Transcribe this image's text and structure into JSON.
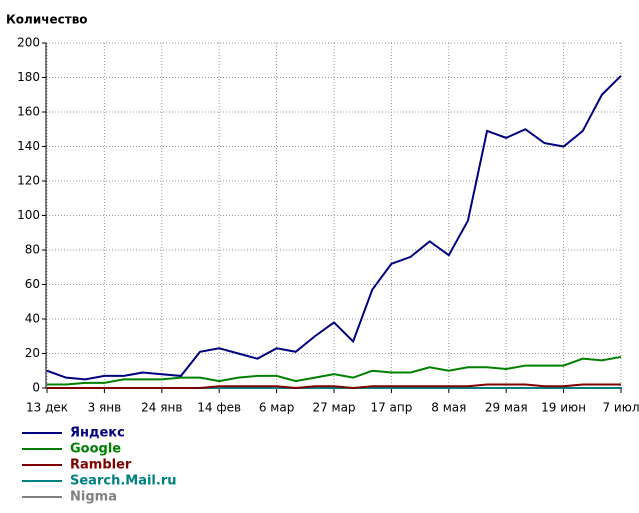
{
  "chart_data": {
    "type": "line",
    "y_label": "Количество",
    "categories": [
      "13 дек",
      null,
      null,
      "3 янв",
      null,
      null,
      "24 янв",
      null,
      null,
      "14 фев",
      null,
      null,
      "6 мар",
      null,
      null,
      "27 мар",
      null,
      null,
      "17 апр",
      null,
      null,
      "8 мая",
      null,
      null,
      "29 мая",
      null,
      null,
      "19 июн",
      null,
      null,
      "7 июл"
    ],
    "series": [
      {
        "name": "Яндекс",
        "color": "#000080",
        "values": [
          10,
          6,
          5,
          7,
          7,
          9,
          8,
          7,
          21,
          23,
          20,
          17,
          23,
          21,
          30,
          38,
          27,
          57,
          72,
          76,
          85,
          77,
          97,
          149,
          145,
          150,
          142,
          140,
          149,
          170,
          181
        ]
      },
      {
        "name": "Google",
        "color": "#008000",
        "values": [
          2,
          2,
          3,
          3,
          5,
          5,
          5,
          6,
          6,
          4,
          6,
          7,
          7,
          4,
          6,
          8,
          6,
          10,
          9,
          9,
          12,
          10,
          12,
          12,
          11,
          13,
          13,
          13,
          17,
          16,
          18
        ]
      },
      {
        "name": "Rambler",
        "color": "#800000",
        "values": [
          0,
          0,
          0,
          0,
          0,
          0,
          0,
          0,
          0,
          1,
          1,
          1,
          1,
          0,
          1,
          1,
          0,
          1,
          1,
          1,
          1,
          1,
          1,
          2,
          2,
          2,
          1,
          1,
          2,
          2,
          2
        ]
      },
      {
        "name": "Search.Mail.ru",
        "color": "#008080",
        "values": [
          0,
          0,
          0,
          0,
          0,
          0,
          0,
          0,
          0,
          0,
          0,
          0,
          0,
          0,
          0,
          0,
          0,
          0,
          0,
          0,
          0,
          0,
          0,
          0,
          0,
          0,
          0,
          0,
          0,
          0,
          0
        ]
      },
      {
        "name": "Nigma",
        "color": "#808080",
        "values": [
          0,
          0,
          0,
          0,
          0,
          0,
          0,
          0,
          0,
          0,
          0,
          0,
          0,
          0,
          0,
          0,
          0,
          0,
          0,
          0,
          0,
          0,
          0,
          0,
          0,
          0,
          0,
          0,
          0,
          0,
          0
        ]
      }
    ],
    "ylim": [
      0,
      200
    ],
    "yticks": [
      0,
      20,
      40,
      60,
      80,
      100,
      120,
      140,
      160,
      180,
      200
    ],
    "grid": true
  }
}
